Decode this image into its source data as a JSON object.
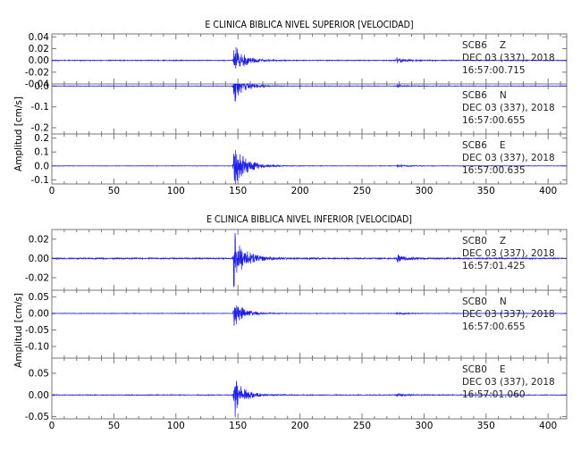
{
  "chart_data": [
    {
      "type": "line",
      "title": "E CLINICA BIBLICA NIVEL SUPERIOR [VELOCIDAD]",
      "ylabel": "Amplitud [cm/s]",
      "xlim": [
        0,
        415
      ],
      "xticks": [
        0,
        50,
        100,
        150,
        200,
        250,
        300,
        350,
        400
      ],
      "panels": [
        {
          "station": "SCB6",
          "component": "Z",
          "date": "DEC 03 (337), 2018",
          "time": "16:57:00.715",
          "ylim": [
            -0.04,
            0.045
          ],
          "yticks": [
            "0.04",
            "0.02",
            "0.00",
            "-0.02",
            "-0.04"
          ],
          "yvals": [
            0.04,
            0.02,
            0.0,
            -0.02,
            -0.04
          ],
          "events": [
            {
              "t": 146.5,
              "peak": 0.04
            },
            {
              "t": 278,
              "peak": 0.006
            }
          ],
          "noise": 0.0006,
          "decay": 8
        },
        {
          "station": "SCB6",
          "component": "N",
          "date": "DEC 03 (337), 2018",
          "time": "16:57:00.655",
          "ylim": [
            -0.23,
            0.01
          ],
          "yticks": [
            "0.0",
            "-0.1",
            "-0.2"
          ],
          "yvals": [
            0.0,
            -0.1,
            -0.2
          ],
          "events": [
            {
              "t": 146.5,
              "peak": 0.1
            },
            {
              "t": 278,
              "peak": 0.008
            }
          ],
          "noise": 0.001,
          "decay": 8
        },
        {
          "station": "SCB6",
          "component": "E",
          "date": "DEC 03 (337), 2018",
          "time": "16:57:00.635",
          "ylim": [
            -0.13,
            0.23
          ],
          "yticks": [
            "0.2",
            "0.1",
            "0.0",
            "-0.1"
          ],
          "yvals": [
            0.2,
            0.1,
            0.0,
            -0.1
          ],
          "events": [
            {
              "t": 146.5,
              "peak": 0.2
            },
            {
              "t": 278,
              "peak": 0.01
            }
          ],
          "noise": 0.0015,
          "decay": 10
        }
      ]
    },
    {
      "type": "line",
      "title": "E CLINICA BIBLICA NIVEL INFERIOR [VELOCIDAD]",
      "ylabel": "Amplitud [cm/s]",
      "xlim": [
        0,
        415
      ],
      "xticks": [
        0,
        50,
        100,
        150,
        200,
        250,
        300,
        350,
        400
      ],
      "panels": [
        {
          "station": "SCB0",
          "component": "Z",
          "date": "DEC 03 (337), 2018",
          "time": "16:57:01.425",
          "ylim": [
            -0.033,
            0.03
          ],
          "yticks": [
            "0.02",
            "0.00",
            "-0.02"
          ],
          "yvals": [
            0.02,
            0.0,
            -0.02
          ],
          "events": [
            {
              "t": 146.5,
              "peak": 0.03
            },
            {
              "t": 278,
              "peak": 0.004
            }
          ],
          "noise": 0.0006,
          "decay": 10
        },
        {
          "station": "SCB0",
          "component": "N",
          "date": "DEC 03 (337), 2018",
          "time": "16:57:00.655",
          "ylim": [
            -0.135,
            0.07
          ],
          "yticks": [
            "0.05",
            "0.00",
            "-0.05",
            "-0.10"
          ],
          "yvals": [
            0.05,
            0.0,
            -0.05,
            -0.1
          ],
          "events": [
            {
              "t": 146.5,
              "peak": 0.06
            },
            {
              "t": 278,
              "peak": 0.004
            }
          ],
          "noise": 0.0008,
          "decay": 8
        },
        {
          "station": "SCB0",
          "component": "E",
          "date": "DEC 03 (337), 2018",
          "time": "16:57:01.060",
          "ylim": [
            -0.055,
            0.085
          ],
          "yticks": [
            "0.05",
            "0.00",
            "-0.05"
          ],
          "yvals": [
            0.05,
            0.0,
            -0.05
          ],
          "events": [
            {
              "t": 146.5,
              "peak": 0.06
            },
            {
              "t": 278,
              "peak": 0.005
            }
          ],
          "noise": 0.0008,
          "decay": 8
        }
      ]
    }
  ],
  "colors": {
    "trace": "#1f1fe8",
    "axis": "#777777"
  }
}
